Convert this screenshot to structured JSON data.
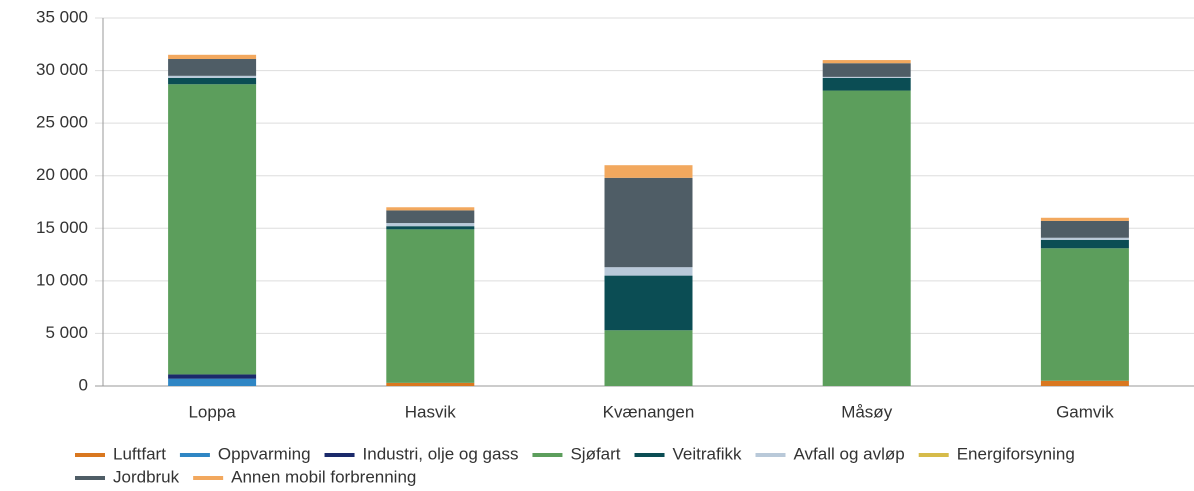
{
  "chart_data": {
    "type": "stacked-bar",
    "categories": [
      "Loppa",
      "Hasvik",
      "Kvænangen",
      "Måsøy",
      "Gamvik"
    ],
    "series": [
      {
        "name": "Luftfart",
        "color": "#d9771f",
        "values": [
          0,
          300,
          0,
          0,
          500
        ]
      },
      {
        "name": "Oppvarming",
        "color": "#2f86c4",
        "values": [
          700,
          0,
          0,
          0,
          0
        ]
      },
      {
        "name": "Industri, olje og gass",
        "color": "#1b2a6b",
        "values": [
          400,
          0,
          0,
          0,
          0
        ]
      },
      {
        "name": "Sjøfart",
        "color": "#5c9e5c",
        "values": [
          27600,
          14600,
          5300,
          28100,
          12600
        ]
      },
      {
        "name": "Veitrafikk",
        "color": "#0b4d54",
        "values": [
          600,
          300,
          5200,
          1200,
          800
        ]
      },
      {
        "name": "Avfall og avløp",
        "color": "#b9c9d9",
        "values": [
          200,
          300,
          800,
          100,
          200
        ]
      },
      {
        "name": "Energiforsyning",
        "color": "#d6bb4a",
        "values": [
          0,
          0,
          0,
          0,
          0
        ]
      },
      {
        "name": "Jordbruk",
        "color": "#4f5d66",
        "values": [
          1600,
          1200,
          8500,
          1300,
          1600
        ]
      },
      {
        "name": "Annen mobil forbrenning",
        "color": "#f2a85e",
        "values": [
          400,
          300,
          1200,
          300,
          300
        ]
      }
    ],
    "ylim": [
      0,
      35000
    ],
    "yticks": [
      0,
      {
        "value": 5000,
        "label": "5 000"
      },
      {
        "value": 10000,
        "label": "10 000"
      },
      {
        "value": 15000,
        "label": "15 000"
      },
      {
        "value": 20000,
        "label": "20 000"
      },
      {
        "value": 25000,
        "label": "25 000"
      },
      {
        "value": 30000,
        "label": "30 000"
      },
      {
        "value": 35000,
        "label": "35 000"
      }
    ],
    "grid": true
  }
}
